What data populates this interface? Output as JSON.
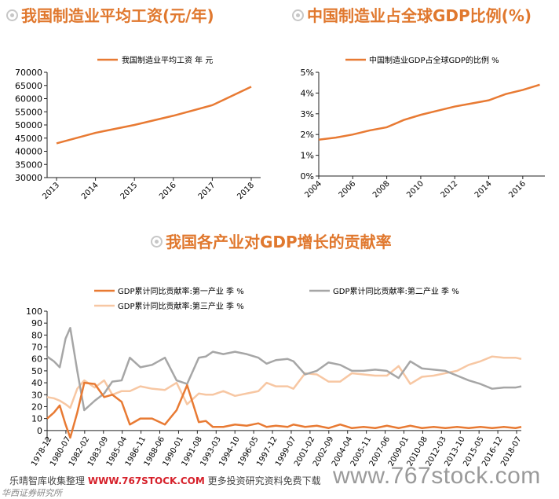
{
  "titles": {
    "wage": "我国制造业平均工资(元/年)",
    "share": "中国制造业占全球GDP比例(%)",
    "contrib": "我国各产业对GDP增长的贡献率"
  },
  "colors": {
    "orange": "#E87A33",
    "gray": "#A6A6A6",
    "peach": "#F7C7A3",
    "title": "#E0782E"
  },
  "footer": {
    "prefix": "乐晴智库收集整理",
    "site": "WWW.767STOCK.COM",
    "suffix": "更多投资研究资料免费下载",
    "watermark": "www.767stock.com",
    "sub": "华西证券研究所"
  },
  "chart_data": [
    {
      "type": "line",
      "legend": "我国制造业平均工资 年 元",
      "categories": [
        "2013",
        "2014",
        "2015",
        "2016",
        "2017",
        "2018"
      ],
      "series": [
        {
          "name": "我国制造业平均工资 年 元",
          "values": [
            43000,
            47000,
            50000,
            53500,
            57500,
            64500
          ]
        }
      ],
      "yticks": [
        "30000",
        "35000",
        "40000",
        "45000",
        "50000",
        "55000",
        "60000",
        "65000",
        "70000"
      ],
      "ylim": [
        30000,
        70000
      ],
      "legend_position": "top"
    },
    {
      "type": "line",
      "legend": "中国制造业GDP占全球GDP的比例 %",
      "xticks": [
        "2004",
        "2006",
        "2008",
        "2010",
        "2012",
        "2014",
        "2016"
      ],
      "x": [
        2004,
        2005,
        2006,
        2007,
        2008,
        2009,
        2010,
        2011,
        2012,
        2013,
        2014,
        2015,
        2016,
        2017
      ],
      "series": [
        {
          "name": "中国制造业GDP占全球GDP的比例 %",
          "values": [
            1.75,
            1.85,
            2.0,
            2.2,
            2.35,
            2.7,
            2.95,
            3.15,
            3.35,
            3.5,
            3.65,
            3.95,
            4.15,
            4.4
          ]
        }
      ],
      "yticks": [
        "0%",
        "1%",
        "2%",
        "3%",
        "4%",
        "5%"
      ],
      "ylim": [
        0,
        5
      ],
      "xlim": [
        2004,
        2017.3
      ],
      "legend_position": "top"
    },
    {
      "type": "line",
      "legend_position": "top",
      "xticks": [
        "1978-12",
        "1980-07",
        "1982-02",
        "1983-09",
        "1985-04",
        "1986-11",
        "1988-06",
        "1990-01",
        "1991-08",
        "1993-03",
        "1994-10",
        "1996-05",
        "1997-12",
        "1999-07",
        "2001-02",
        "2002-09",
        "2004-04",
        "2005-11",
        "2007-06",
        "2009-01",
        "2010-08",
        "2012-03",
        "2013-10",
        "2015-05",
        "2016-12",
        "2018-07"
      ],
      "yticks": [
        "0",
        "10",
        "20",
        "30",
        "40",
        "50",
        "60",
        "70",
        "80",
        "90",
        "100"
      ],
      "ylim": [
        -10,
        100
      ],
      "xlim": [
        1978.92,
        2019.5
      ],
      "series": [
        {
          "name": "GDP累计同比贡献率:第一产业 季 %",
          "points": [
            [
              1978.92,
              10
            ],
            [
              1979.5,
              15
            ],
            [
              1980.0,
              21
            ],
            [
              1980.5,
              5
            ],
            [
              1980.9,
              -6
            ],
            [
              1981.5,
              15
            ],
            [
              1982.1,
              40
            ],
            [
              1983.0,
              39
            ],
            [
              1983.8,
              28
            ],
            [
              1984.5,
              30
            ],
            [
              1985.3,
              24
            ],
            [
              1986.0,
              5
            ],
            [
              1986.9,
              10
            ],
            [
              1987.9,
              10
            ],
            [
              1989.0,
              5
            ],
            [
              1990.0,
              17
            ],
            [
              1990.9,
              38
            ],
            [
              1991.9,
              7
            ],
            [
              1992.5,
              8
            ],
            [
              1993.1,
              3
            ],
            [
              1994.0,
              3
            ],
            [
              1995.0,
              5
            ],
            [
              1996.0,
              4
            ],
            [
              1997.0,
              6
            ],
            [
              1997.7,
              3
            ],
            [
              1998.5,
              4
            ],
            [
              1999.5,
              3
            ],
            [
              2000.0,
              5
            ],
            [
              2001.0,
              3
            ],
            [
              2002.0,
              4
            ],
            [
              2003.0,
              2
            ],
            [
              2004.0,
              5
            ],
            [
              2005.0,
              2
            ],
            [
              2006.0,
              3
            ],
            [
              2007.0,
              2
            ],
            [
              2008.0,
              4
            ],
            [
              2009.0,
              2
            ],
            [
              2010.0,
              4
            ],
            [
              2011.0,
              2
            ],
            [
              2012.0,
              3
            ],
            [
              2013.0,
              2
            ],
            [
              2014.0,
              3
            ],
            [
              2015.0,
              2
            ],
            [
              2016.0,
              3
            ],
            [
              2017.0,
              2
            ],
            [
              2018.0,
              3
            ],
            [
              2019.0,
              2
            ],
            [
              2019.5,
              3
            ]
          ]
        },
        {
          "name": "GDP累计同比贡献率:第二产业 季 %",
          "points": [
            [
              1978.92,
              62
            ],
            [
              1979.5,
              58
            ],
            [
              1980.0,
              53
            ],
            [
              1980.5,
              77
            ],
            [
              1980.9,
              86
            ],
            [
              1981.5,
              50
            ],
            [
              1982.1,
              17
            ],
            [
              1983.0,
              25
            ],
            [
              1983.8,
              31
            ],
            [
              1984.5,
              41
            ],
            [
              1985.3,
              42
            ],
            [
              1986.0,
              61
            ],
            [
              1986.9,
              53
            ],
            [
              1987.9,
              55
            ],
            [
              1989.0,
              61
            ],
            [
              1990.0,
              42
            ],
            [
              1990.9,
              39
            ],
            [
              1991.9,
              61
            ],
            [
              1992.5,
              62
            ],
            [
              1993.1,
              66
            ],
            [
              1994.0,
              64
            ],
            [
              1995.0,
              66
            ],
            [
              1996.0,
              64
            ],
            [
              1997.0,
              61
            ],
            [
              1997.7,
              56
            ],
            [
              1998.5,
              59
            ],
            [
              1999.5,
              60
            ],
            [
              2000.0,
              58
            ],
            [
              2001.0,
              47
            ],
            [
              2002.0,
              50
            ],
            [
              2003.0,
              57
            ],
            [
              2004.0,
              55
            ],
            [
              2005.0,
              50
            ],
            [
              2006.0,
              50
            ],
            [
              2007.0,
              51
            ],
            [
              2008.0,
              50
            ],
            [
              2009.0,
              44
            ],
            [
              2010.0,
              58
            ],
            [
              2011.0,
              52
            ],
            [
              2012.0,
              51
            ],
            [
              2013.0,
              50
            ],
            [
              2014.0,
              46
            ],
            [
              2015.0,
              42
            ],
            [
              2016.0,
              39
            ],
            [
              2017.0,
              35
            ],
            [
              2018.0,
              36
            ],
            [
              2019.0,
              36
            ],
            [
              2019.5,
              37
            ]
          ]
        },
        {
          "name": "GDP累计同比贡献率:第三产业 季 %",
          "points": [
            [
              1978.92,
              28
            ],
            [
              1979.5,
              27
            ],
            [
              1980.0,
              25
            ],
            [
              1980.5,
              22
            ],
            [
              1980.9,
              19
            ],
            [
              1981.5,
              35
            ],
            [
              1982.1,
              42
            ],
            [
              1983.0,
              36
            ],
            [
              1983.8,
              42
            ],
            [
              1984.5,
              30
            ],
            [
              1985.3,
              33
            ],
            [
              1986.0,
              33
            ],
            [
              1986.9,
              37
            ],
            [
              1987.9,
              35
            ],
            [
              1989.0,
              34
            ],
            [
              1990.0,
              40
            ],
            [
              1990.9,
              22
            ],
            [
              1991.9,
              31
            ],
            [
              1992.5,
              30
            ],
            [
              1993.1,
              30
            ],
            [
              1994.0,
              33
            ],
            [
              1995.0,
              29
            ],
            [
              1996.0,
              31
            ],
            [
              1997.0,
              33
            ],
            [
              1997.7,
              40
            ],
            [
              1998.5,
              37
            ],
            [
              1999.5,
              37
            ],
            [
              2000.0,
              35
            ],
            [
              2001.0,
              48
            ],
            [
              2002.0,
              47
            ],
            [
              2003.0,
              41
            ],
            [
              2004.0,
              41
            ],
            [
              2005.0,
              48
            ],
            [
              2006.0,
              47
            ],
            [
              2007.0,
              46
            ],
            [
              2008.0,
              46
            ],
            [
              2009.0,
              54
            ],
            [
              2010.0,
              39
            ],
            [
              2011.0,
              45
            ],
            [
              2012.0,
              46
            ],
            [
              2013.0,
              48
            ],
            [
              2014.0,
              50
            ],
            [
              2015.0,
              55
            ],
            [
              2016.0,
              58
            ],
            [
              2017.0,
              62
            ],
            [
              2018.0,
              61
            ],
            [
              2019.0,
              61
            ],
            [
              2019.5,
              60
            ]
          ]
        }
      ]
    }
  ]
}
